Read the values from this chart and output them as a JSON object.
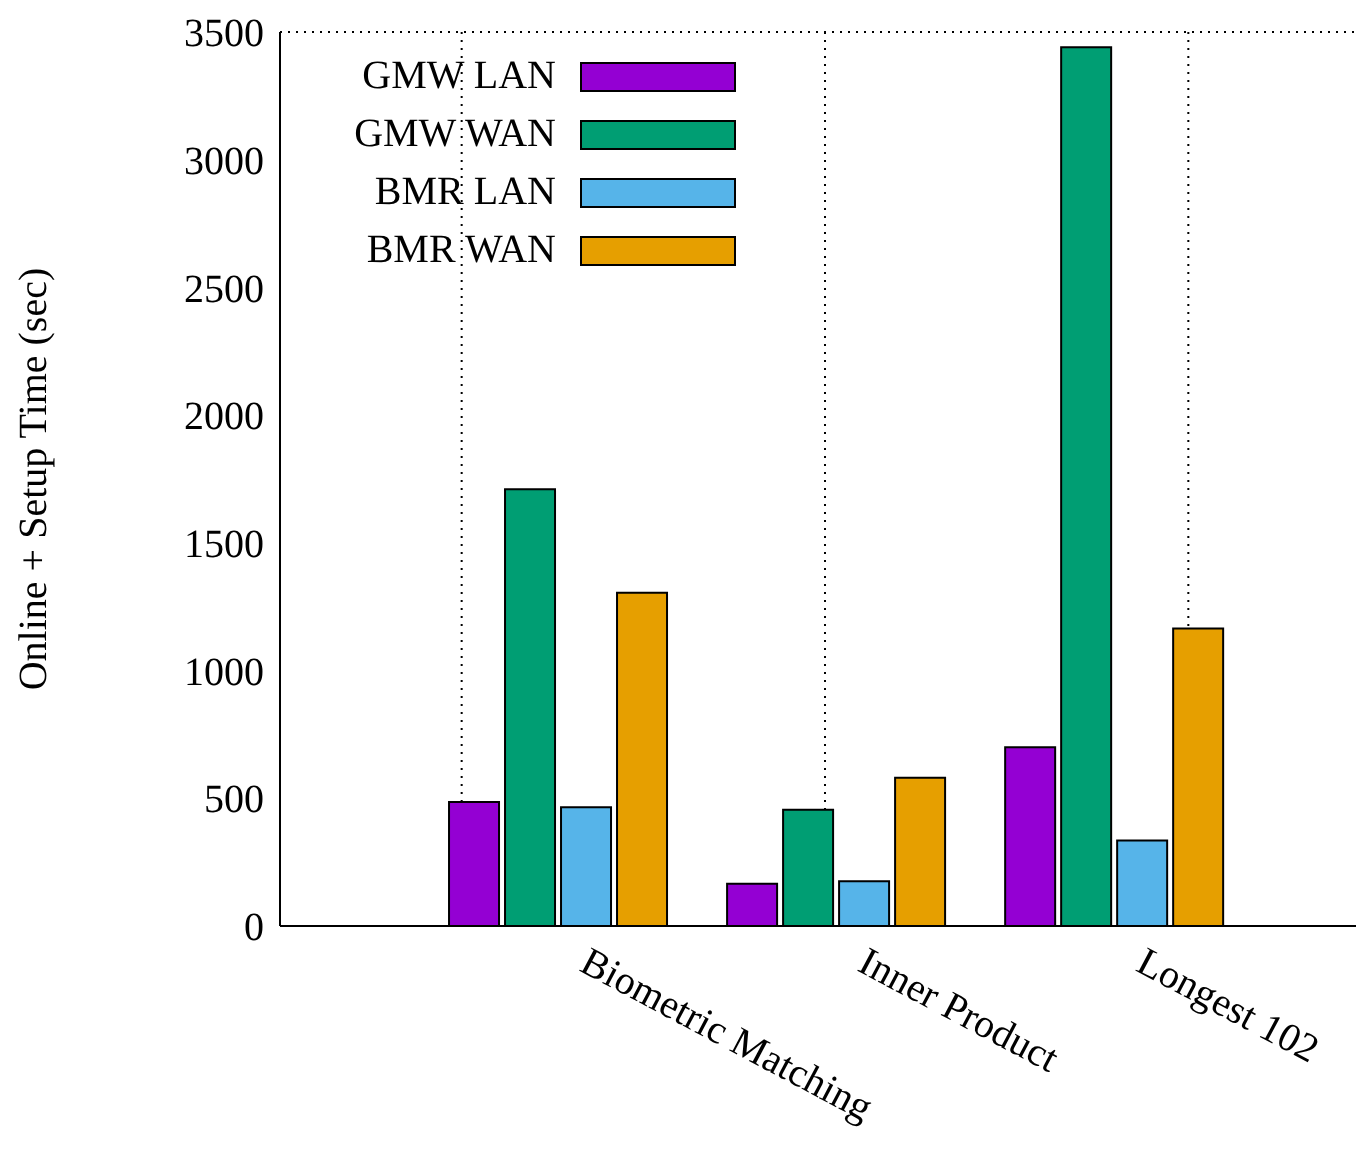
{
  "chart_data": {
    "type": "bar",
    "ylabel": "Online + Setup Time (sec)",
    "categories": [
      "Biometric Matching",
      "Inner Product",
      "Longest 102"
    ],
    "series": [
      {
        "name": "GMW LAN",
        "color": "#9400d3",
        "values": [
          485,
          165,
          700
        ]
      },
      {
        "name": "GMW WAN",
        "color": "#009e73",
        "values": [
          1710,
          455,
          3440
        ]
      },
      {
        "name": "BMR LAN",
        "color": "#56b4e9",
        "values": [
          465,
          175,
          335
        ]
      },
      {
        "name": "BMR WAN",
        "color": "#e69f00",
        "values": [
          1305,
          580,
          1165
        ]
      }
    ],
    "ylim": [
      0,
      3500
    ],
    "yticks": [
      0,
      500,
      1000,
      1500,
      2000,
      2500,
      3000,
      3500
    ],
    "grid": true,
    "legend": "top left"
  }
}
